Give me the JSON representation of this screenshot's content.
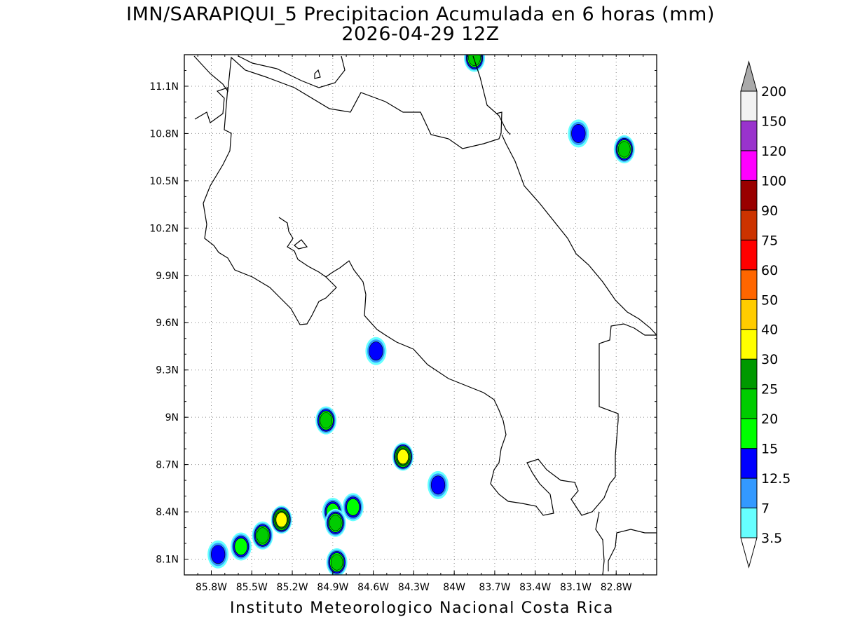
{
  "title": {
    "line1": "IMN/SARAPIQUI_5 Precipitacion Acumulada en 6 horas (mm)",
    "line2": "2026-04-29 12Z"
  },
  "footer": "Instituto Meteorologico Nacional Costa Rica",
  "map": {
    "lon_range": [
      -86.0,
      -82.5
    ],
    "lat_range": [
      8.0,
      11.3
    ],
    "lon_ticks": [
      "85.8W",
      "85.5W",
      "85.2W",
      "84.9W",
      "84.6W",
      "84.3W",
      "84W",
      "83.7W",
      "83.4W",
      "83.1W",
      "82.8W"
    ],
    "lat_ticks": [
      "8.1N",
      "8.4N",
      "8.7N",
      "9N",
      "9.3N",
      "9.6N",
      "9.9N",
      "10.2N",
      "10.5N",
      "10.8N",
      "11.1N"
    ],
    "grid": "dotted"
  },
  "colorbar": {
    "levels": [
      "3.5",
      "7",
      "12.5",
      "15",
      "20",
      "25",
      "30",
      "40",
      "50",
      "60",
      "75",
      "90",
      "100",
      "120",
      "150",
      "200"
    ],
    "colors": [
      "#66ffff",
      "#3399ff",
      "#0000ff",
      "#00ff00",
      "#00cc00",
      "#009900",
      "#ffff00",
      "#ffcc00",
      "#ff6600",
      "#ff0000",
      "#cc3300",
      "#990000",
      "#ff00ff",
      "#9933cc",
      "#f2f2f2"
    ],
    "over_color": "#aaaaaa",
    "under_color": "#ffffff"
  },
  "precip_cells": [
    {
      "lon": -84.9,
      "lat": 8.4,
      "level": "15"
    },
    {
      "lon": -84.88,
      "lat": 8.33,
      "level": "20"
    },
    {
      "lon": -84.38,
      "lat": 8.75,
      "level": "30"
    },
    {
      "lon": -84.95,
      "lat": 8.98,
      "level": "20"
    },
    {
      "lon": -85.28,
      "lat": 8.35,
      "level": "30"
    },
    {
      "lon": -85.42,
      "lat": 8.25,
      "level": "20"
    },
    {
      "lon": -84.87,
      "lat": 8.08,
      "level": "20"
    },
    {
      "lon": -84.58,
      "lat": 9.42,
      "level": "12.5"
    },
    {
      "lon": -83.08,
      "lat": 10.8,
      "level": "12.5"
    },
    {
      "lon": -82.74,
      "lat": 10.7,
      "level": "20"
    },
    {
      "lon": -83.85,
      "lat": 11.28,
      "level": "20"
    },
    {
      "lon": -85.58,
      "lat": 8.18,
      "level": "15"
    },
    {
      "lon": -85.75,
      "lat": 8.13,
      "level": "12.5"
    },
    {
      "lon": -84.75,
      "lat": 8.43,
      "level": "15"
    },
    {
      "lon": -84.12,
      "lat": 8.57,
      "level": "12.5"
    }
  ]
}
